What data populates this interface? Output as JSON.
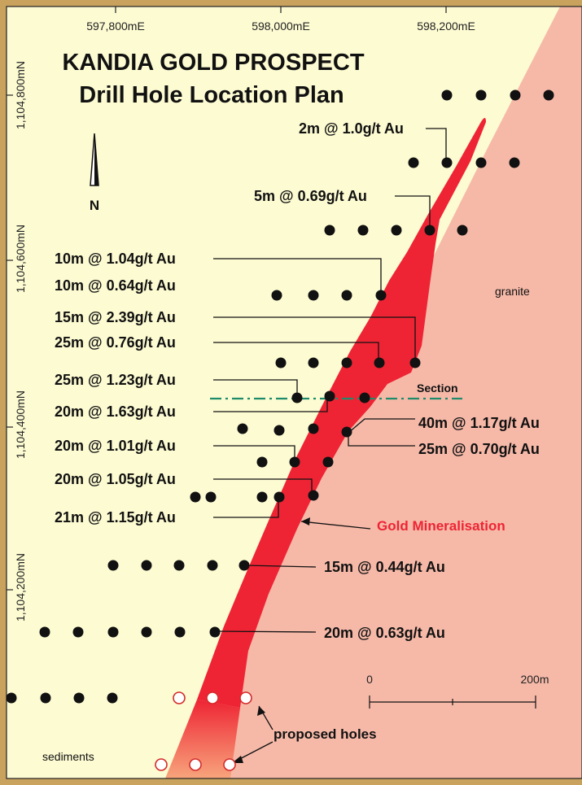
{
  "title_line1": "KANDIA GOLD PROSPECT",
  "title_line2": "Drill Hole Location Plan",
  "north_label": "N",
  "easting_ticks": [
    "597,800mE",
    "598,000mE",
    "598,200mE"
  ],
  "northing_ticks": [
    "1,104,800mN",
    "1,104,600mN",
    "1,104,400mN",
    "1,104,200mN"
  ],
  "zones": {
    "granite": "granite",
    "sediments": "sediments"
  },
  "mineralisation_label": "Gold Mineralisation",
  "section_label": "Section",
  "proposed_label": "proposed holes",
  "scale": {
    "start": "0",
    "end": "200m"
  },
  "intercepts": [
    "2m @ 1.0g/t Au",
    "5m @ 0.69g/t Au",
    "10m @ 1.04g/t Au",
    "10m @ 0.64g/t Au",
    "15m @ 2.39g/t Au",
    "25m @ 0.76g/t Au",
    "25m @ 1.23g/t Au",
    "20m @ 1.63g/t Au",
    "40m @ 1.17g/t Au",
    "25m @ 0.70g/t Au",
    "20m @ 1.01g/t Au",
    "20m @ 1.05g/t Au",
    "21m @ 1.15g/t Au",
    "15m @ 0.44g/t Au",
    "20m @ 0.63g/t Au"
  ],
  "colors": {
    "sediments": "#fdfbd2",
    "granite": "#f6b9a8",
    "mineralisation": "#ee2434",
    "section_line": "#1e8c6a",
    "frame": "#c9a35e"
  }
}
